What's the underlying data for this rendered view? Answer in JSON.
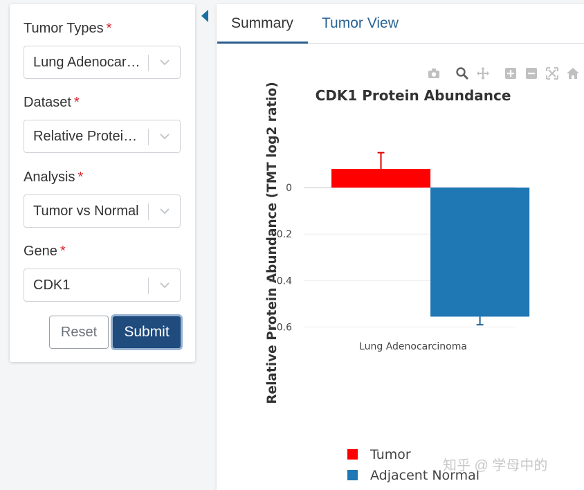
{
  "sidebar": {
    "fields": [
      {
        "label": "Tumor Types",
        "required_mark": "*",
        "value": "Lung Adenocarcinoma"
      },
      {
        "label": "Dataset",
        "required_mark": "*",
        "value": "Relative Protein Abundance"
      },
      {
        "label": "Analysis",
        "required_mark": "*",
        "value": "Tumor vs Normal"
      },
      {
        "label": "Gene",
        "required_mark": "*",
        "value": "CDK1"
      }
    ],
    "reset_label": "Reset",
    "submit_label": "Submit"
  },
  "tabs": [
    {
      "label": "Summary",
      "active": true
    },
    {
      "label": "Tumor View",
      "active": false
    }
  ],
  "modebar_icons": [
    "camera-icon",
    "zoom-icon",
    "pan-icon",
    "zoom-in-icon",
    "zoom-out-icon",
    "autoscale-icon",
    "home-icon"
  ],
  "watermark": "知乎 @ 学母中的",
  "colors": {
    "accent": "#2a6496",
    "submit": "#1f4b7d",
    "tumor": "#ff0000",
    "normal": "#1f77b4"
  },
  "chart_data": {
    "type": "bar",
    "title": "CDK1 Protein Abundance",
    "xlabel": "",
    "ylabel": "Relative Protein Abundance (TMT log2 ratio)",
    "categories": [
      "Lung Adenocarcinoma"
    ],
    "series": [
      {
        "name": "Tumor",
        "values": [
          0.08
        ],
        "error": [
          0.07
        ],
        "color": "#ff0000"
      },
      {
        "name": "Adjacent Normal",
        "values": [
          -0.555
        ],
        "error": [
          0.035
        ],
        "color": "#1f77b4"
      }
    ],
    "ylim": [
      -0.6,
      0.14
    ],
    "yticks": [
      0,
      -0.2,
      -0.4,
      -0.6
    ],
    "ytick_labels": [
      "0",
      "−0.2",
      "−0.4",
      "−0.6"
    ],
    "grid": true,
    "legend": "bottom"
  }
}
